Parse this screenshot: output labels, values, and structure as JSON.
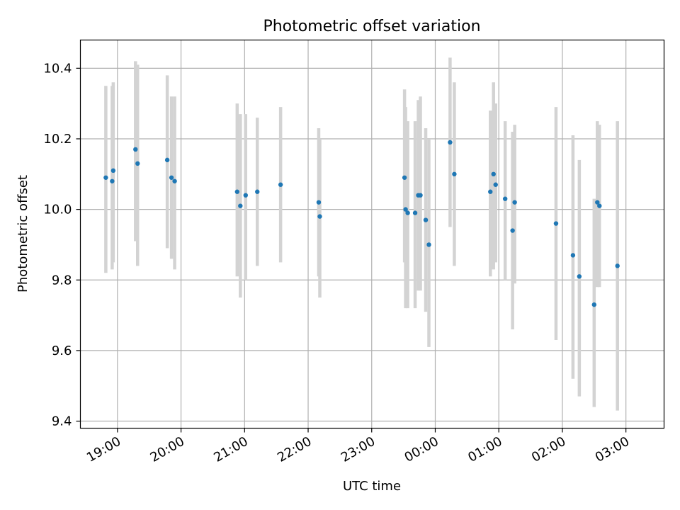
{
  "chart_data": {
    "type": "scatter",
    "title": "Photometric offset variation",
    "xlabel": "UTC time",
    "ylabel": "Photometric offset",
    "xlim": [
      "18:25",
      "03:36"
    ],
    "ylim": [
      9.38,
      10.48
    ],
    "xticks": [
      "19:00",
      "20:00",
      "21:00",
      "22:00",
      "23:00",
      "00:00",
      "01:00",
      "02:00",
      "03:00"
    ],
    "yticks": [
      "9.4",
      "9.6",
      "9.8",
      "10.0",
      "10.2",
      "10.4"
    ],
    "grid": true,
    "series": [
      {
        "marker": "point",
        "error": "vertical bar",
        "points": [
          {
            "t": "18:49",
            "y": 10.09,
            "lo": 9.82,
            "hi": 10.35
          },
          {
            "t": "18:55",
            "y": 10.08,
            "lo": 9.83,
            "hi": 10.35
          },
          {
            "t": "18:56",
            "y": 10.11,
            "lo": 9.85,
            "hi": 10.36
          },
          {
            "t": "19:17",
            "y": 10.17,
            "lo": 9.91,
            "hi": 10.42
          },
          {
            "t": "19:19",
            "y": 10.13,
            "lo": 9.84,
            "hi": 10.41
          },
          {
            "t": "19:47",
            "y": 10.14,
            "lo": 9.89,
            "hi": 10.38
          },
          {
            "t": "19:51",
            "y": 10.09,
            "lo": 9.86,
            "hi": 10.32
          },
          {
            "t": "19:54",
            "y": 10.08,
            "lo": 9.83,
            "hi": 10.32
          },
          {
            "t": "20:53",
            "y": 10.05,
            "lo": 9.81,
            "hi": 10.3
          },
          {
            "t": "20:56",
            "y": 10.01,
            "lo": 9.75,
            "hi": 10.27
          },
          {
            "t": "21:01",
            "y": 10.04,
            "lo": 9.8,
            "hi": 10.27
          },
          {
            "t": "21:12",
            "y": 10.05,
            "lo": 9.84,
            "hi": 10.26
          },
          {
            "t": "21:34",
            "y": 10.07,
            "lo": 9.85,
            "hi": 10.29
          },
          {
            "t": "22:10",
            "y": 10.02,
            "lo": 9.81,
            "hi": 10.23
          },
          {
            "t": "22:11",
            "y": 9.98,
            "lo": 9.75,
            "hi": 10.2
          },
          {
            "t": "23:31",
            "y": 10.09,
            "lo": 9.85,
            "hi": 10.34
          },
          {
            "t": "23:32",
            "y": 10.0,
            "lo": 9.72,
            "hi": 10.29
          },
          {
            "t": "23:34",
            "y": 9.99,
            "lo": 9.72,
            "hi": 10.25
          },
          {
            "t": "23:41",
            "y": 9.99,
            "lo": 9.72,
            "hi": 10.25
          },
          {
            "t": "23:44",
            "y": 10.04,
            "lo": 9.77,
            "hi": 10.31
          },
          {
            "t": "23:46",
            "y": 10.04,
            "lo": 9.77,
            "hi": 10.32
          },
          {
            "t": "23:51",
            "y": 9.97,
            "lo": 9.71,
            "hi": 10.23
          },
          {
            "t": "23:54",
            "y": 9.9,
            "lo": 9.61,
            "hi": 10.2
          },
          {
            "t": "00:14",
            "y": 10.19,
            "lo": 9.95,
            "hi": 10.43
          },
          {
            "t": "00:18",
            "y": 10.1,
            "lo": 9.84,
            "hi": 10.36
          },
          {
            "t": "00:52",
            "y": 10.05,
            "lo": 9.81,
            "hi": 10.28
          },
          {
            "t": "00:55",
            "y": 10.1,
            "lo": 9.83,
            "hi": 10.36
          },
          {
            "t": "00:57",
            "y": 10.07,
            "lo": 9.85,
            "hi": 10.3
          },
          {
            "t": "01:06",
            "y": 10.03,
            "lo": 9.8,
            "hi": 10.25
          },
          {
            "t": "01:13",
            "y": 9.94,
            "lo": 9.66,
            "hi": 10.22
          },
          {
            "t": "01:15",
            "y": 10.02,
            "lo": 9.79,
            "hi": 10.24
          },
          {
            "t": "01:54",
            "y": 9.96,
            "lo": 9.63,
            "hi": 10.29
          },
          {
            "t": "02:10",
            "y": 9.87,
            "lo": 9.52,
            "hi": 10.21
          },
          {
            "t": "02:16",
            "y": 9.81,
            "lo": 9.47,
            "hi": 10.14
          },
          {
            "t": "02:30",
            "y": 9.73,
            "lo": 9.44,
            "hi": 10.03
          },
          {
            "t": "02:33",
            "y": 10.02,
            "lo": 9.78,
            "hi": 10.25
          },
          {
            "t": "02:35",
            "y": 10.01,
            "lo": 9.78,
            "hi": 10.24
          },
          {
            "t": "02:52",
            "y": 9.84,
            "lo": 9.43,
            "hi": 10.25
          }
        ]
      }
    ]
  }
}
